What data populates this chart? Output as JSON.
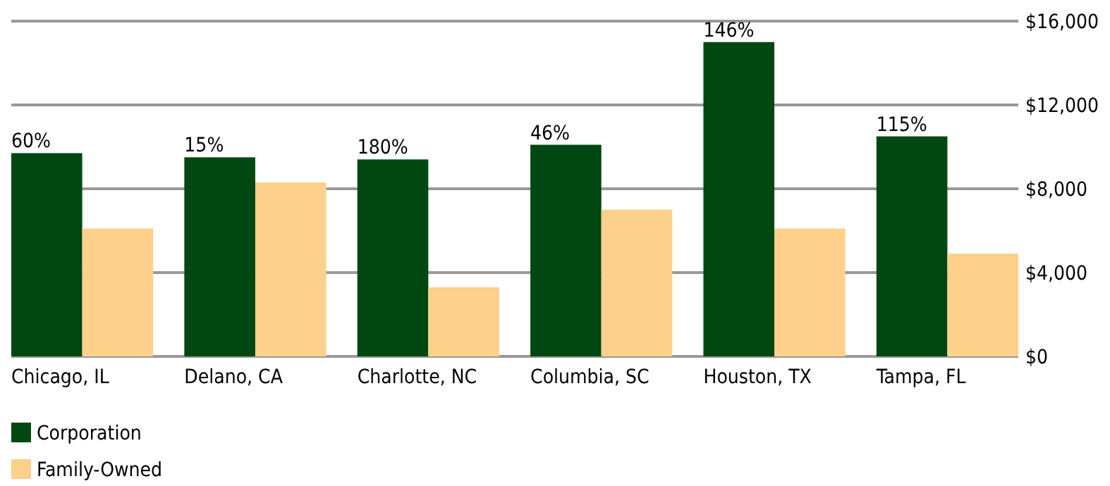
{
  "chart_data": {
    "type": "bar",
    "categories": [
      "Chicago, IL",
      "Delano, CA",
      "Charlotte, NC",
      "Columbia, SC",
      "Houston, TX",
      "Tampa, FL"
    ],
    "series": [
      {
        "name": "Corporation",
        "color": "#004712",
        "values": [
          9700,
          9500,
          9400,
          10100,
          15000,
          10500
        ]
      },
      {
        "name": "Family-Owned",
        "color": "#fdd08b",
        "values": [
          6100,
          8300,
          3300,
          7000,
          6100,
          4900
        ]
      }
    ],
    "annotations": [
      {
        "text": "60%",
        "x": "Chicago, IL",
        "y": 9700
      },
      {
        "text": "15%",
        "x": "Delano, CA",
        "y": 9500
      },
      {
        "text": "180%",
        "x": "Charlotte, NC",
        "y": 9400
      },
      {
        "text": "46%",
        "x": "Columbia, SC",
        "y": 10100
      },
      {
        "text": "146%",
        "x": "Houston, TX",
        "y": 15000
      },
      {
        "text": "115%",
        "x": "Tampa, FL",
        "y": 10500
      }
    ],
    "ylim": [
      0,
      16000
    ],
    "yticks": [
      {
        "value": 0,
        "label": "$0"
      },
      {
        "value": 4000,
        "label": "$4,000"
      },
      {
        "value": 8000,
        "label": "$8,000"
      },
      {
        "value": 12000,
        "label": "$12,000"
      },
      {
        "value": 16000,
        "label": "$16,000"
      }
    ],
    "grid": "y",
    "legend": "bottom"
  }
}
